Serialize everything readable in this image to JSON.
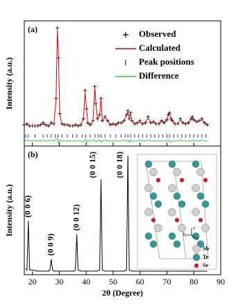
{
  "chart_data": [
    {
      "type": "line",
      "panel_label": "(a)",
      "y_label": "Intensity (a.u.)",
      "xlim": [
        17,
        90
      ],
      "xticks": [
        20,
        30,
        40,
        50,
        60,
        70,
        80,
        90
      ],
      "ylim": [
        -17,
        107
      ],
      "legend": "upper right",
      "x": [
        17,
        18,
        19,
        20,
        21,
        22,
        23,
        24,
        25,
        26,
        27,
        28,
        28.8,
        29.3,
        29.7,
        30.2,
        31,
        32,
        33,
        34,
        35,
        36,
        37,
        38,
        39,
        39.6,
        40.1,
        40.6,
        41.5,
        42.5,
        43.2,
        43.6,
        44.2,
        45,
        45.5,
        46,
        47,
        48,
        49,
        50,
        51,
        52,
        53,
        54,
        55,
        55.5,
        56,
        56.5,
        57,
        58,
        59,
        60,
        61,
        62,
        63,
        64,
        65,
        66,
        67,
        68,
        69,
        70,
        70.5,
        71,
        71.5,
        72,
        73,
        74,
        75,
        76,
        77,
        78,
        79,
        79.5,
        80,
        81,
        82,
        83,
        84,
        85
      ],
      "series": [
        {
          "name": "Observed",
          "color": "#000000",
          "marker": "plus",
          "values": [
            4,
            5,
            3,
            3,
            3,
            3,
            4,
            6,
            4,
            3,
            6,
            5,
            30,
            100,
            70,
            15,
            5,
            4,
            4,
            3,
            3,
            4,
            3,
            4,
            10,
            38,
            20,
            6,
            4,
            8,
            42,
            25,
            10,
            14,
            30,
            8,
            12,
            8,
            4,
            5,
            4,
            6,
            6,
            8,
            14,
            18,
            10,
            16,
            8,
            5,
            6,
            8,
            5,
            6,
            12,
            6,
            7,
            5,
            5,
            8,
            6,
            9,
            14,
            16,
            10,
            8,
            5,
            5,
            10,
            6,
            5,
            6,
            10,
            12,
            9,
            7,
            8,
            10,
            6,
            4
          ]
        },
        {
          "name": "Calculated",
          "color": "#d40000",
          "marker": "line",
          "values": [
            4,
            4,
            3,
            3,
            3,
            3,
            4,
            5,
            4,
            3,
            5,
            5,
            28,
            98,
            72,
            14,
            5,
            4,
            4,
            3,
            3,
            4,
            3,
            4,
            11,
            36,
            21,
            6,
            4,
            7,
            41,
            26,
            10,
            13,
            31,
            8,
            11,
            8,
            4,
            5,
            4,
            6,
            6,
            7,
            14,
            17,
            11,
            15,
            8,
            5,
            6,
            7,
            5,
            6,
            11,
            6,
            7,
            5,
            5,
            8,
            6,
            9,
            13,
            16,
            11,
            8,
            5,
            5,
            9,
            6,
            5,
            6,
            10,
            11,
            9,
            7,
            8,
            9,
            6,
            4
          ]
        },
        {
          "name": "Peak positions",
          "color": "#2a2ad0",
          "marker": "tick",
          "x": [
            17.5,
            18.5,
            21,
            24,
            25.5,
            27,
            28.5,
            29.5,
            31,
            33,
            35,
            36.5,
            38.5,
            39.8,
            41.5,
            43.3,
            44.5,
            45.5,
            47,
            49,
            51,
            53,
            54.5,
            55.5,
            56.5,
            58,
            59.5,
            61,
            62.5,
            64,
            65.5,
            67,
            68.5,
            70,
            71,
            72.5,
            74,
            75.5,
            77,
            78.5,
            80,
            81.5,
            83,
            84.5
          ],
          "values": [
            -7,
            -7,
            -7,
            -7,
            -7,
            -7,
            -7,
            -7,
            -7,
            -7,
            -7,
            -7,
            -7,
            -7,
            -7,
            -7,
            -7,
            -7,
            -7,
            -7,
            -7,
            -7,
            -7,
            -7,
            -7,
            -7,
            -7,
            -7,
            -7,
            -7,
            -7,
            -7,
            -7,
            -7,
            -7,
            -7,
            -7,
            -7,
            -7,
            -7,
            -7,
            -7,
            -7,
            -7
          ]
        },
        {
          "name": "Difference",
          "color": "#33cc33",
          "marker": "line",
          "values": [
            -12,
            -11,
            -12,
            -12,
            -12,
            -12,
            -12,
            -11,
            -12,
            -12,
            -11,
            -12,
            -10,
            -10,
            -14,
            -11,
            -12,
            -12,
            -12,
            -12,
            -12,
            -12,
            -12,
            -12,
            -13,
            -10,
            -13,
            -12,
            -12,
            -11,
            -11,
            -13,
            -12,
            -11,
            -13,
            -12,
            -11,
            -12,
            -12,
            -12,
            -12,
            -12,
            -12,
            -11,
            -12,
            -11,
            -13,
            -11,
            -12,
            -12,
            -12,
            -11,
            -12,
            -12,
            -11,
            -12,
            -12,
            -12,
            -12,
            -12,
            -12,
            -12,
            -11,
            -12,
            -13,
            -12,
            -12,
            -12,
            -11,
            -12,
            -12,
            -12,
            -12,
            -11,
            -12,
            -12,
            -12,
            -11,
            -12,
            -12
          ]
        }
      ]
    },
    {
      "type": "line",
      "panel_label": "(b)",
      "y_label": "Intensity (a.u.)",
      "x_label": "2θ (Degree)",
      "xlim": [
        17,
        90
      ],
      "xticks": [
        20,
        30,
        40,
        50,
        60,
        70,
        80,
        90
      ],
      "ylim": [
        0,
        108
      ],
      "color": "#000000",
      "x": [
        17.5,
        18,
        18.5,
        19,
        20,
        22,
        24,
        26,
        26.5,
        27,
        27.5,
        28,
        30,
        32,
        34,
        35.5,
        36,
        36.5,
        37,
        38,
        40,
        42,
        44,
        45,
        45.5,
        46,
        47,
        50,
        52,
        54,
        55,
        55.5,
        56,
        57,
        60,
        62,
        64,
        66,
        68,
        70,
        72,
        74,
        76,
        78,
        80,
        82,
        84,
        85
      ],
      "values": [
        5,
        4,
        45,
        4,
        4,
        3,
        3,
        3,
        4,
        13,
        4,
        3,
        3,
        3,
        3,
        3,
        4,
        34,
        4,
        3,
        3,
        3,
        3,
        4,
        80,
        4,
        3,
        3,
        3,
        3,
        4,
        100,
        4,
        3,
        3,
        3,
        3,
        3,
        3,
        3,
        3,
        3,
        3,
        3,
        3,
        3,
        3,
        3
      ],
      "annotations": [
        {
          "text": "(0 0 6)",
          "x": 18.5
        },
        {
          "text": "(0 0 9)",
          "x": 27
        },
        {
          "text": "(0 0 12)",
          "x": 36.5
        },
        {
          "text": "(0 0 15)",
          "x": 45.5
        },
        {
          "text": "(0 0 18)",
          "x": 55.5
        }
      ],
      "inset": {
        "labels": [
          "Sb",
          "Te",
          "Se"
        ],
        "colors": [
          "#d0d0d0",
          "#2e9c94",
          "#e01818"
        ],
        "axes": [
          "c",
          "b",
          "a"
        ]
      }
    }
  ]
}
